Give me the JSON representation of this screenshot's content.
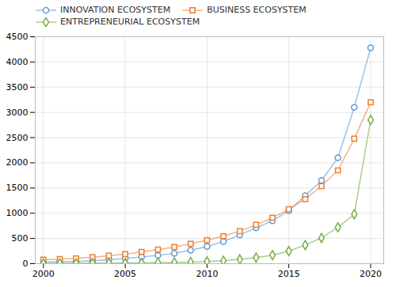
{
  "chart_data": {
    "type": "line",
    "x": [
      2000,
      2001,
      2002,
      2003,
      2004,
      2005,
      2006,
      2007,
      2008,
      2009,
      2010,
      2011,
      2012,
      2013,
      2014,
      2015,
      2016,
      2017,
      2018,
      2019,
      2020
    ],
    "series": [
      {
        "name": "INNOVATION ECOSYSTEM",
        "color": "#5B9BD5",
        "marker": "circle",
        "values": [
          30,
          38,
          45,
          58,
          78,
          105,
          135,
          165,
          205,
          265,
          340,
          440,
          570,
          710,
          850,
          1050,
          1350,
          1650,
          2100,
          3100,
          4280
        ]
      },
      {
        "name": "BUSINESS ECOSYSTEM",
        "color": "#ED7D31",
        "marker": "square",
        "values": [
          80,
          92,
          105,
          128,
          158,
          190,
          235,
          280,
          330,
          395,
          465,
          545,
          645,
          770,
          910,
          1080,
          1280,
          1540,
          1850,
          2480,
          3200
        ]
      },
      {
        "name": "ENTREPRENEURIAL ECOSYSTEM",
        "color": "#70AD47",
        "marker": "diamond",
        "values": [
          5,
          7,
          8,
          10,
          12,
          14,
          17,
          20,
          25,
          32,
          45,
          60,
          85,
          120,
          170,
          250,
          370,
          510,
          720,
          980,
          2850
        ]
      }
    ],
    "xlim": [
      1999.5,
      2020.8
    ],
    "xticks": [
      2000,
      2005,
      2010,
      2015,
      2020
    ],
    "ylim": [
      0,
      4500
    ],
    "yticks": [
      0,
      500,
      1000,
      1500,
      2000,
      2500,
      3000,
      3500,
      4000,
      4500
    ],
    "grid": true,
    "legend": "top"
  }
}
